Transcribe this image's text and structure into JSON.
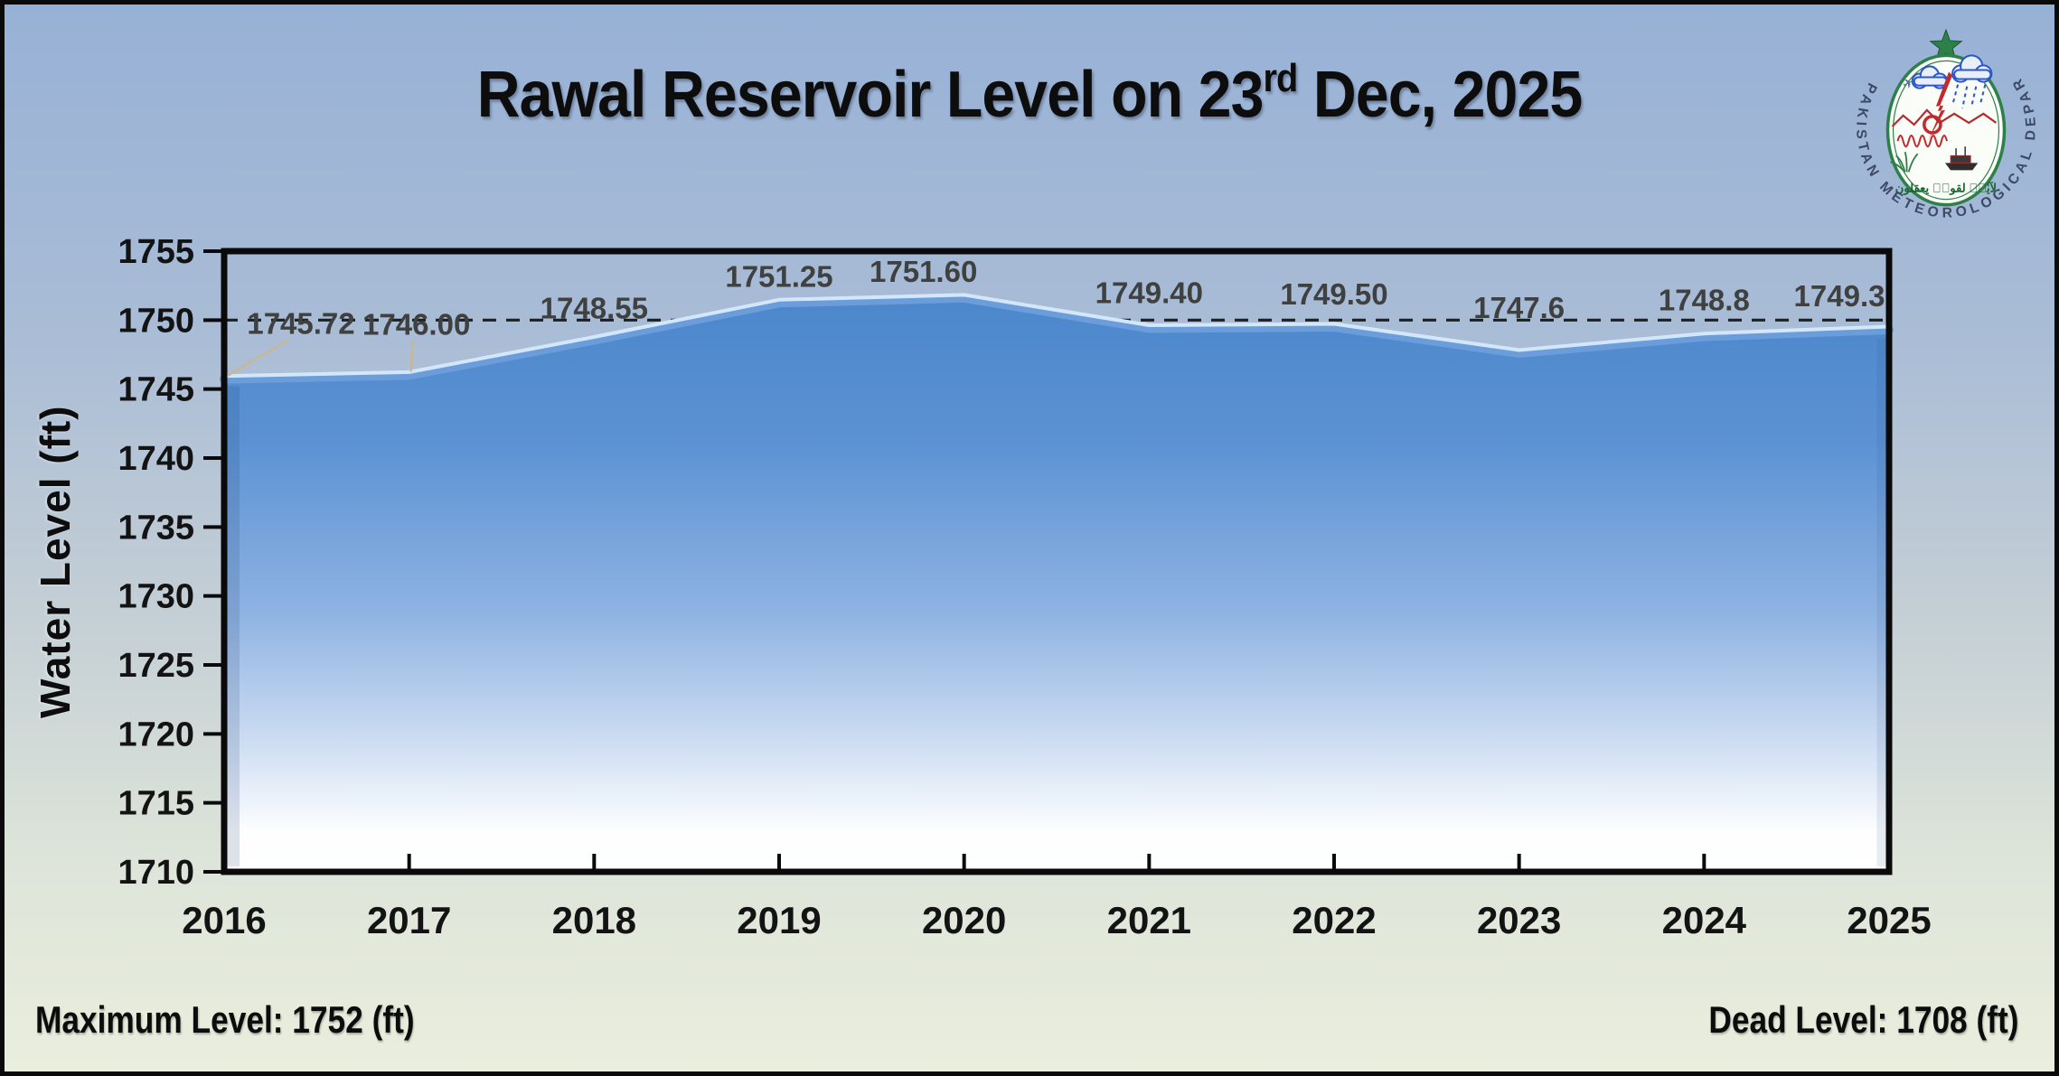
{
  "header": {
    "title_prefix": "Rawal Reservoir Level on 23",
    "title_sup": "rd",
    "title_suffix": " Dec, 2025"
  },
  "logo": {
    "ring_text": "PAKISTAN METEOROLOGICAL DEPARTMENT",
    "arabic_text": "لآيٰتٖ لقومٖ يعقلون"
  },
  "chart_data": {
    "type": "area",
    "title": "Rawal Reservoir Level on 23rd Dec, 2025",
    "categories": [
      "2016",
      "2017",
      "2018",
      "2019",
      "2020",
      "2021",
      "2022",
      "2023",
      "2024",
      "2025"
    ],
    "values": [
      1745.72,
      1746.0,
      1748.55,
      1751.25,
      1751.6,
      1749.4,
      1749.5,
      1747.6,
      1748.8,
      1749.3
    ],
    "point_labels": [
      "1745.72",
      "1746.00",
      "1748.55",
      "1751.25",
      "1751.60",
      "1749.40",
      "1749.50",
      "1747.6",
      "1748.8",
      "1749.3"
    ],
    "ylabel": "Water Level (ft)",
    "xlabel": "",
    "ylim": [
      1710,
      1755
    ],
    "ytick_step": 5,
    "reference_level": 1750,
    "grid": false,
    "legend": "none",
    "maximum_level_ft": 1752,
    "dead_level_ft": 1708
  },
  "footer": {
    "maximum_label": "Maximum Level: 1752 (ft)",
    "dead_label": "Dead Level: 1708 (ft)"
  },
  "colors": {
    "background_top": "#97b1d6",
    "background_bottom": "#eaeedd",
    "area_top": "#4c87cc",
    "area_mid": "#8fb3e2",
    "area_fade": "#ffffff",
    "area_edge": "#6b9dda",
    "area_edge_highlight": "#d9ebfc",
    "axis": "#0a0a0a",
    "tick_label": "#131313",
    "data_label": "#3f4040",
    "reference_line": "#1f1f1f",
    "leader_line": "#c8b795",
    "logo_green": "#2e8049",
    "logo_red": "#c32a2e",
    "logo_blue": "#2b57c8",
    "logo_ring_text": "#3d4a66",
    "logo_arabic": "#17642f"
  }
}
